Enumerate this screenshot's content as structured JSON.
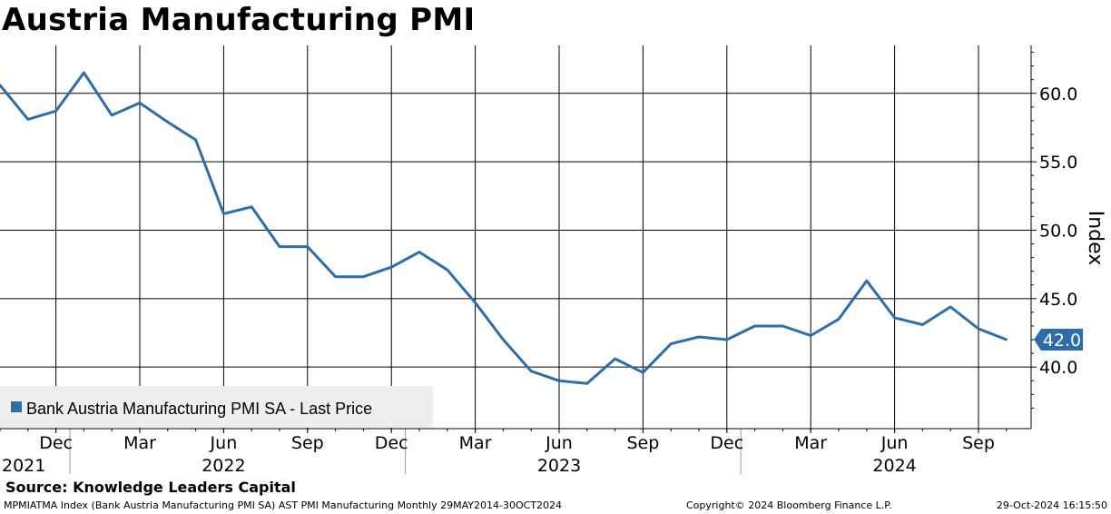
{
  "chart_data": {
    "type": "line",
    "title": "Austria Manufacturing PMI",
    "ylabel": "Index",
    "ylim": [
      35.5,
      63.5
    ],
    "yticks": [
      40,
      45,
      50,
      55,
      60
    ],
    "ytick_labels": [
      "40.0",
      "45.0",
      "50.0",
      "55.0",
      "60.0"
    ],
    "grid": true,
    "legend_position": "bottom-left",
    "x_start": "2021-10",
    "x_end": "2024-10",
    "month_ticks": [
      {
        "month": "2021-12",
        "label": "Dec"
      },
      {
        "month": "2022-03",
        "label": "Mar"
      },
      {
        "month": "2022-06",
        "label": "Jun"
      },
      {
        "month": "2022-09",
        "label": "Sep"
      },
      {
        "month": "2022-12",
        "label": "Dec"
      },
      {
        "month": "2023-03",
        "label": "Mar"
      },
      {
        "month": "2023-06",
        "label": "Jun"
      },
      {
        "month": "2023-09",
        "label": "Sep"
      },
      {
        "month": "2023-12",
        "label": "Dec"
      },
      {
        "month": "2024-03",
        "label": "Mar"
      },
      {
        "month": "2024-06",
        "label": "Jun"
      },
      {
        "month": "2024-09",
        "label": "Sep"
      }
    ],
    "year_labels": [
      {
        "label": "2021",
        "month": "2021-10"
      },
      {
        "label": "2022",
        "month": "2022-06"
      },
      {
        "label": "2023",
        "month": "2023-06"
      },
      {
        "label": "2024",
        "month": "2024-06"
      }
    ],
    "year_separators": [
      "2022-01",
      "2023-01",
      "2024-01"
    ],
    "series": [
      {
        "name": "Bank Austria Manufacturing PMI SA - Last Price",
        "color": "#2e6ea8",
        "x": [
          "2021-10",
          "2021-11",
          "2021-12",
          "2022-01",
          "2022-02",
          "2022-03",
          "2022-04",
          "2022-05",
          "2022-06",
          "2022-07",
          "2022-08",
          "2022-09",
          "2022-10",
          "2022-11",
          "2022-12",
          "2023-01",
          "2023-02",
          "2023-03",
          "2023-04",
          "2023-05",
          "2023-06",
          "2023-07",
          "2023-08",
          "2023-09",
          "2023-10",
          "2023-11",
          "2023-12",
          "2024-01",
          "2024-02",
          "2024-03",
          "2024-04",
          "2024-05",
          "2024-06",
          "2024-07",
          "2024-08",
          "2024-09",
          "2024-10"
        ],
        "values": [
          60.6,
          58.1,
          58.7,
          61.5,
          58.4,
          59.3,
          57.9,
          56.6,
          51.2,
          51.7,
          48.8,
          48.8,
          46.6,
          46.6,
          47.3,
          48.4,
          47.1,
          44.7,
          42.0,
          39.7,
          39.0,
          38.8,
          40.6,
          39.6,
          41.7,
          42.2,
          42.0,
          43.0,
          43.0,
          42.3,
          43.5,
          46.3,
          43.6,
          43.1,
          44.4,
          42.8,
          42.0
        ],
        "last_value_label": "42.0"
      }
    ]
  },
  "footer": {
    "source": "Source: Knowledge Leaders Capital",
    "left": "MPMIATMA Index (Bank Austria Manufacturing PMI SA) AST PMI Manufacturing  Monthly 29MAY2014-30OCT2024",
    "center": "Copyright© 2024 Bloomberg Finance L.P.",
    "right": "29-Oct-2024 16:15:50"
  },
  "colors": {
    "line": "#2e6ea8",
    "last_value_tag": "#2e6ea8",
    "legend_bg": "#eeeeee",
    "grid": "#000000"
  }
}
